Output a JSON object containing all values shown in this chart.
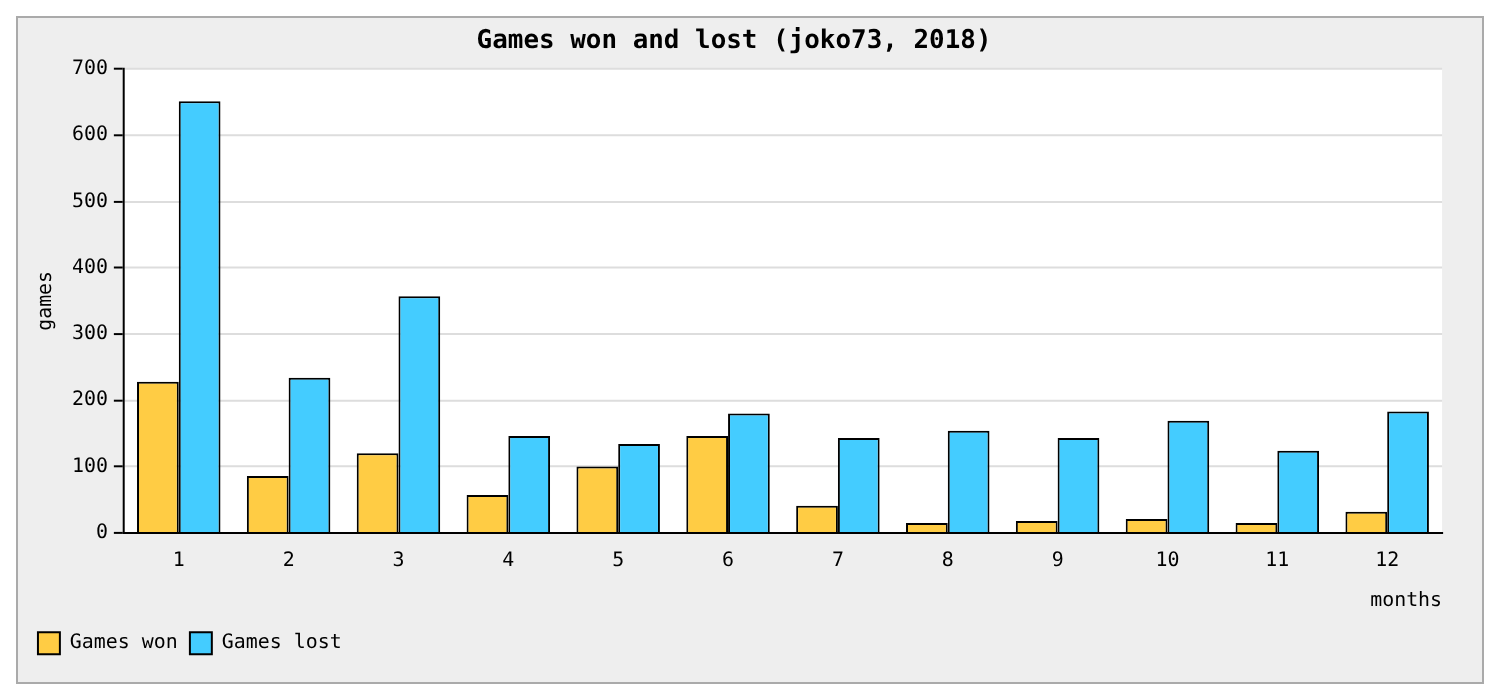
{
  "chart_data": {
    "type": "bar",
    "title": "Games won and lost (joko73, 2018)",
    "xlabel": "months",
    "ylabel": "games",
    "categories": [
      "1",
      "2",
      "3",
      "4",
      "5",
      "6",
      "7",
      "8",
      "9",
      "10",
      "11",
      "12"
    ],
    "series": [
      {
        "name": "Games won",
        "color": "#ffcc44",
        "values": [
          228,
          86,
          120,
          57,
          100,
          146,
          41,
          15,
          18,
          21,
          15,
          32
        ]
      },
      {
        "name": "Games lost",
        "color": "#44ccff",
        "values": [
          651,
          234,
          357,
          146,
          134,
          180,
          143,
          154,
          143,
          169,
          124,
          183
        ]
      }
    ],
    "ylim": [
      0,
      700
    ],
    "yticks": [
      0,
      100,
      200,
      300,
      400,
      500,
      600,
      700
    ],
    "grid": "y",
    "legend": "bottom left"
  }
}
